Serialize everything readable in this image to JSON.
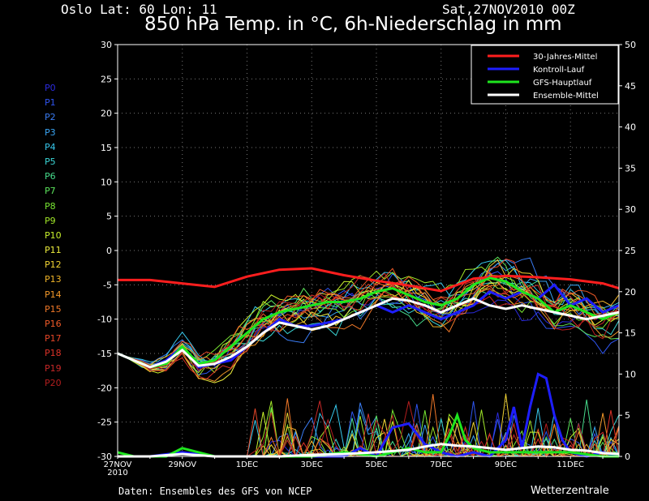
{
  "header": {
    "location": "Oslo   Lat: 60 Lon: 11",
    "run": "Sat,27NOV2010 00Z",
    "title": "850 hPa Temp. in °C, 6h-Niederschlag in mm"
  },
  "footer": {
    "credit": "Daten: Ensembles des GFS von NCEP",
    "brand": "Wetterzentrale"
  },
  "members": [
    {
      "name": "P0",
      "color": "#2b2be0"
    },
    {
      "name": "P1",
      "color": "#2f55f0"
    },
    {
      "name": "P2",
      "color": "#3a7cf4"
    },
    {
      "name": "P3",
      "color": "#3aa5f4"
    },
    {
      "name": "P4",
      "color": "#37c9ee"
    },
    {
      "name": "P5",
      "color": "#3ad6d6"
    },
    {
      "name": "P6",
      "color": "#46dc8c"
    },
    {
      "name": "P7",
      "color": "#5ce65c"
    },
    {
      "name": "P8",
      "color": "#78e632"
    },
    {
      "name": "P9",
      "color": "#a0e628"
    },
    {
      "name": "P10",
      "color": "#c8f02c"
    },
    {
      "name": "P11",
      "color": "#ecec3c"
    },
    {
      "name": "P12",
      "color": "#f0d232"
    },
    {
      "name": "P13",
      "color": "#f0b428"
    },
    {
      "name": "P14",
      "color": "#f09628"
    },
    {
      "name": "P15",
      "color": "#f07828"
    },
    {
      "name": "P16",
      "color": "#f05a28"
    },
    {
      "name": "P17",
      "color": "#e64628"
    },
    {
      "name": "P18",
      "color": "#dc3228"
    },
    {
      "name": "P19",
      "color": "#c82828"
    },
    {
      "name": "P20",
      "color": "#b41e1e"
    }
  ],
  "chart_data": {
    "type": "line",
    "x": [
      "27NOV\n2010",
      "29NOV",
      "1DEC",
      "3DEC",
      "5DEC",
      "7DEC",
      "9DEC",
      "11DEC"
    ],
    "x_start_label": "27NOV",
    "x_start_year": "2010",
    "x_range_days": [
      0,
      15.5
    ],
    "ylim_left": [
      -30,
      30
    ],
    "yticks_left": [
      30,
      25,
      20,
      15,
      10,
      5,
      0,
      -5,
      -10,
      -15,
      -20,
      -25,
      -30
    ],
    "ylim_right": [
      0,
      50
    ],
    "yticks_right": [
      50,
      45,
      40,
      35,
      30,
      25,
      20,
      15,
      10,
      5,
      0
    ],
    "grid": true,
    "legend": {
      "position": "top-right",
      "entries": [
        {
          "label": "30-Jahres-Mittel",
          "color": "#ff1e1e"
        },
        {
          "label": "Kontroll-Lauf",
          "color": "#1e1eff"
        },
        {
          "label": "GFS-Hauptlauf",
          "color": "#1ee61e"
        },
        {
          "label": "Ensemble-Mittel",
          "color": "#ffffff"
        }
      ]
    },
    "temperature_series": [
      {
        "name": "30-Jahres-Mittel",
        "color": "#ff1e1e",
        "days": [
          0,
          1,
          2,
          3,
          4,
          5,
          6,
          7,
          8,
          9,
          10,
          11,
          12,
          13,
          14,
          15,
          15.5
        ],
        "values": [
          -4.3,
          -4.3,
          -4.8,
          -5.3,
          -3.8,
          -2.8,
          -2.6,
          -3.6,
          -4.4,
          -5.1,
          -5.9,
          -4.1,
          -3.7,
          -3.9,
          -4.2,
          -4.8,
          -5.5
        ]
      },
      {
        "name": "Kontroll-Lauf",
        "color": "#1e1eff",
        "days": [
          0,
          0.5,
          1,
          1.5,
          2,
          2.5,
          3,
          3.5,
          4,
          4.5,
          5,
          5.5,
          6,
          6.5,
          7,
          7.5,
          8,
          8.5,
          9,
          9.5,
          10,
          10.5,
          11,
          11.5,
          12,
          12.5,
          13,
          13.5,
          14,
          14.5,
          15,
          15.5
        ],
        "values": [
          -15,
          -16,
          -17,
          -16,
          -14,
          -17,
          -16.5,
          -16,
          -14,
          -12,
          -10,
          -11,
          -11,
          -10.5,
          -10,
          -9,
          -8,
          -9,
          -8,
          -9,
          -10,
          -9,
          -8,
          -6,
          -7,
          -6,
          -7,
          -5,
          -8,
          -7,
          -9,
          -8
        ]
      },
      {
        "name": "GFS-Hauptlauf",
        "color": "#1ee61e",
        "days": [
          0,
          0.5,
          1,
          1.5,
          2,
          2.5,
          3,
          3.5,
          4,
          4.5,
          5,
          5.5,
          6,
          6.5,
          7,
          7.5,
          8,
          8.5,
          9,
          9.5,
          10,
          10.5,
          11,
          11.5,
          12,
          12.5,
          13,
          13.5,
          14,
          14.5,
          15,
          15.5
        ],
        "values": [
          -15,
          -16,
          -17,
          -16.5,
          -14,
          -16.5,
          -16,
          -14,
          -12,
          -10,
          -9,
          -8.5,
          -8,
          -7.5,
          -7.5,
          -7,
          -6,
          -5.5,
          -6.5,
          -7.5,
          -8,
          -7,
          -5,
          -4,
          -4.5,
          -6,
          -7,
          -9,
          -8,
          -9,
          -10,
          -9
        ]
      },
      {
        "name": "Ensemble-Mittel",
        "color": "#ffffff",
        "days": [
          0,
          0.5,
          1,
          1.5,
          2,
          2.5,
          3,
          3.5,
          4,
          4.5,
          5,
          5.5,
          6,
          6.5,
          7,
          7.5,
          8,
          8.5,
          9,
          9.5,
          10,
          10.5,
          11,
          11.5,
          12,
          12.5,
          13,
          13.5,
          14,
          14.5,
          15,
          15.5
        ],
        "values": [
          -15,
          -16,
          -17,
          -16.2,
          -14.5,
          -16.8,
          -16.5,
          -15.5,
          -14,
          -12,
          -10.5,
          -11,
          -11.5,
          -11,
          -10,
          -9,
          -8,
          -7,
          -7.3,
          -8,
          -9,
          -8,
          -7,
          -8,
          -8.5,
          -8,
          -8.5,
          -9,
          -9.5,
          -10,
          -9.5,
          -9
        ]
      }
    ],
    "precipitation_series": [
      {
        "name": "Kontroll-Lauf",
        "color": "#1e1eff",
        "days": [
          0,
          1,
          2,
          3,
          4,
          5,
          6,
          7,
          7.5,
          8,
          8.5,
          9,
          9.5,
          10,
          10.5,
          11,
          11.5,
          12,
          12.25,
          12.5,
          12.75,
          13,
          13.25,
          13.5,
          13.75,
          14,
          14.5,
          15,
          15.5
        ],
        "values": [
          0,
          0,
          0.5,
          0,
          0,
          0,
          0,
          0,
          1,
          0,
          3.5,
          4,
          1.5,
          0.5,
          0,
          0.5,
          0,
          2,
          6,
          1,
          6,
          10,
          9.5,
          5,
          2,
          0.5,
          0,
          0.5,
          0
        ]
      },
      {
        "name": "GFS-Hauptlauf",
        "color": "#1ee61e",
        "days": [
          0,
          0.5,
          1,
          1.5,
          2,
          3,
          4,
          5,
          6,
          7,
          8,
          8.5,
          9,
          9.5,
          10,
          10.25,
          10.5,
          10.75,
          11,
          11.5,
          12,
          13,
          14,
          15,
          15.5
        ],
        "values": [
          0.5,
          0,
          0,
          0,
          1,
          0,
          0,
          0,
          0,
          0.5,
          0,
          0.5,
          1,
          0.5,
          0.5,
          2.5,
          5,
          2,
          1,
          0.5,
          0.5,
          0.5,
          0.5,
          0,
          0
        ]
      },
      {
        "name": "Ensemble-Mittel",
        "color": "#ffffff",
        "days": [
          0,
          1,
          2,
          3,
          4,
          5,
          6,
          7,
          8,
          9,
          9.5,
          10,
          10.5,
          11,
          11.5,
          12,
          12.5,
          13,
          13.5,
          14,
          14.5,
          15,
          15.5
        ],
        "values": [
          0,
          0,
          0.3,
          0,
          0,
          0,
          0.2,
          0.3,
          0.5,
          0.8,
          1.2,
          1.5,
          1.3,
          1.2,
          1,
          0.8,
          1,
          1.2,
          1.1,
          0.8,
          0.7,
          0.4,
          0.3
        ]
      }
    ]
  }
}
